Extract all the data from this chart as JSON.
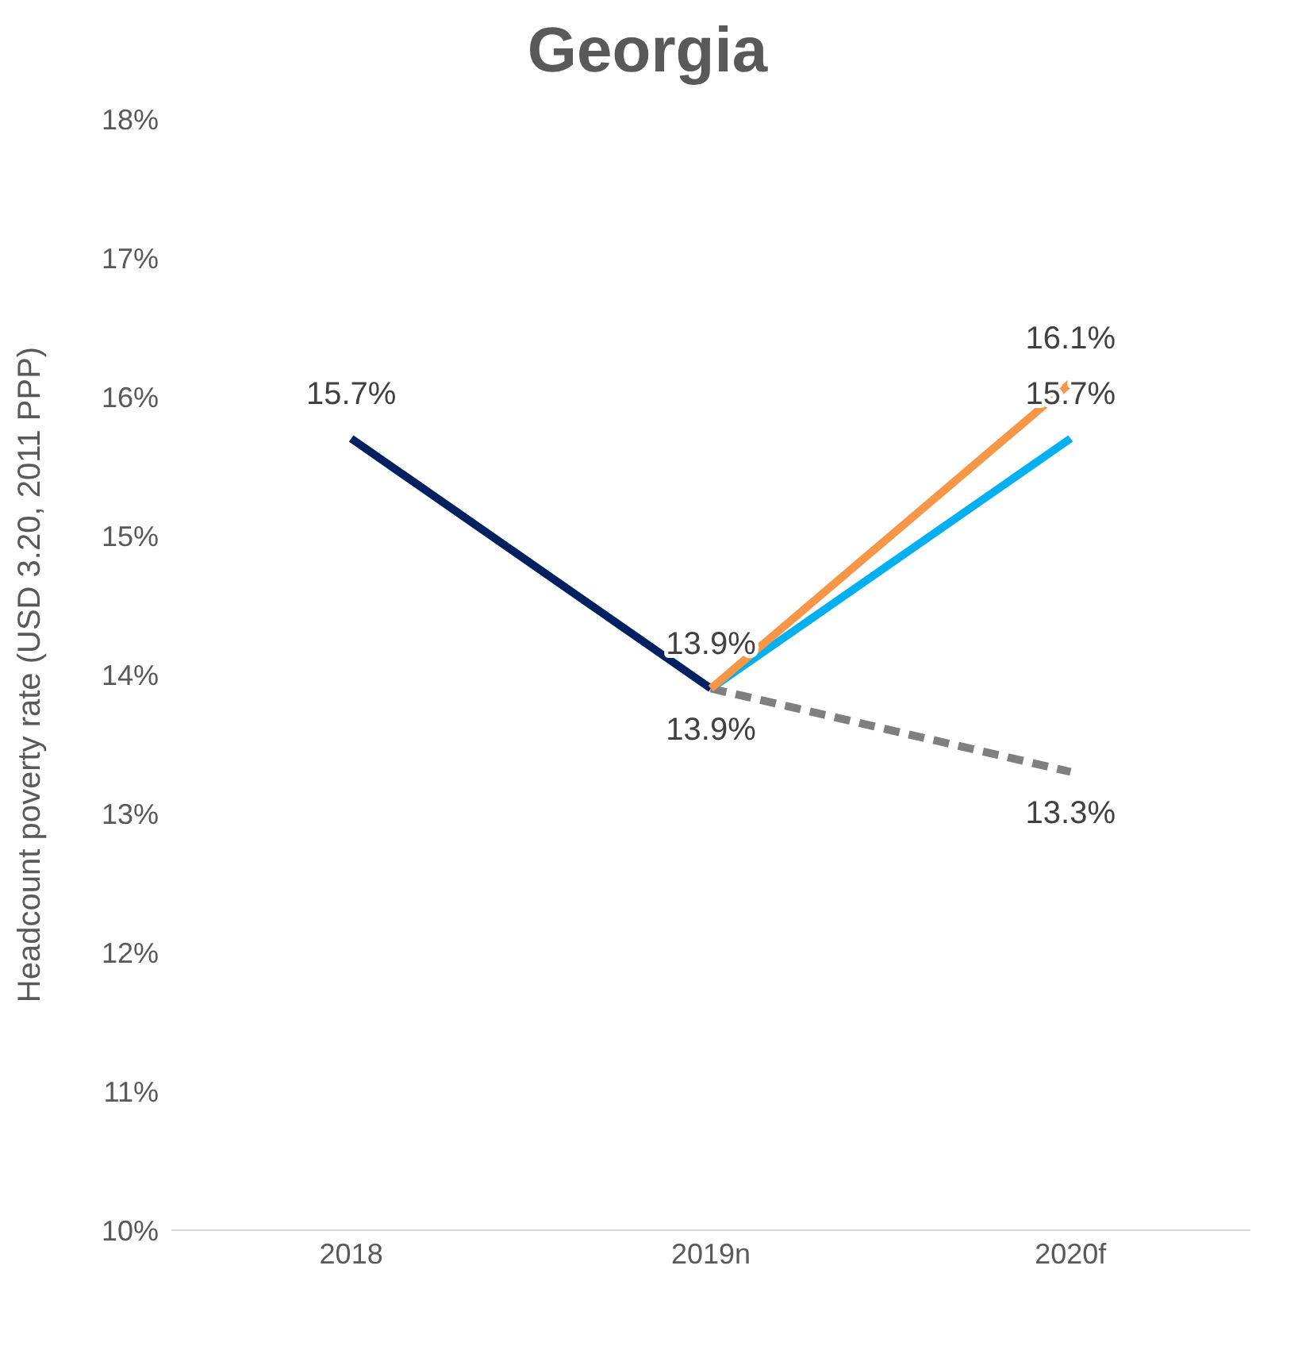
{
  "chart_data": {
    "type": "line",
    "title": "Georgia",
    "ylabel": "Headcount poverty rate (USD 3.20, 2011 PPP)",
    "categories": [
      "2018",
      "2019n",
      "2020f"
    ],
    "series": [
      {
        "color": "#002060",
        "values": [
          15.7,
          13.9,
          null
        ],
        "value_labels": [
          "15.7%",
          "13.9%",
          null
        ]
      },
      {
        "color": "#7f7f7f",
        "line_style": "dashed",
        "values": [
          null,
          13.9,
          13.3
        ],
        "value_labels": [
          null,
          null,
          "13.3%"
        ]
      },
      {
        "color": "#00b0f0",
        "values": [
          null,
          13.9,
          15.7
        ],
        "value_labels": [
          null,
          null,
          "15.7%"
        ]
      },
      {
        "color": "#f79646",
        "values": [
          null,
          13.9,
          16.1
        ],
        "value_labels": [
          null,
          "13.9%",
          "16.1%"
        ]
      }
    ],
    "ylim": [
      10,
      18
    ],
    "yticks": [
      {
        "value": 10,
        "label": "10%"
      },
      {
        "value": 11,
        "label": "11%"
      },
      {
        "value": 12,
        "label": "12%"
      },
      {
        "value": 13,
        "label": "13%"
      },
      {
        "value": 14,
        "label": "14%"
      },
      {
        "value": 15,
        "label": "15%"
      },
      {
        "value": 16,
        "label": "16%"
      },
      {
        "value": 17,
        "label": "17%"
      },
      {
        "value": 18,
        "label": "18%"
      }
    ],
    "grid": false,
    "legend": false,
    "marker": "none",
    "line_style": "solid"
  }
}
